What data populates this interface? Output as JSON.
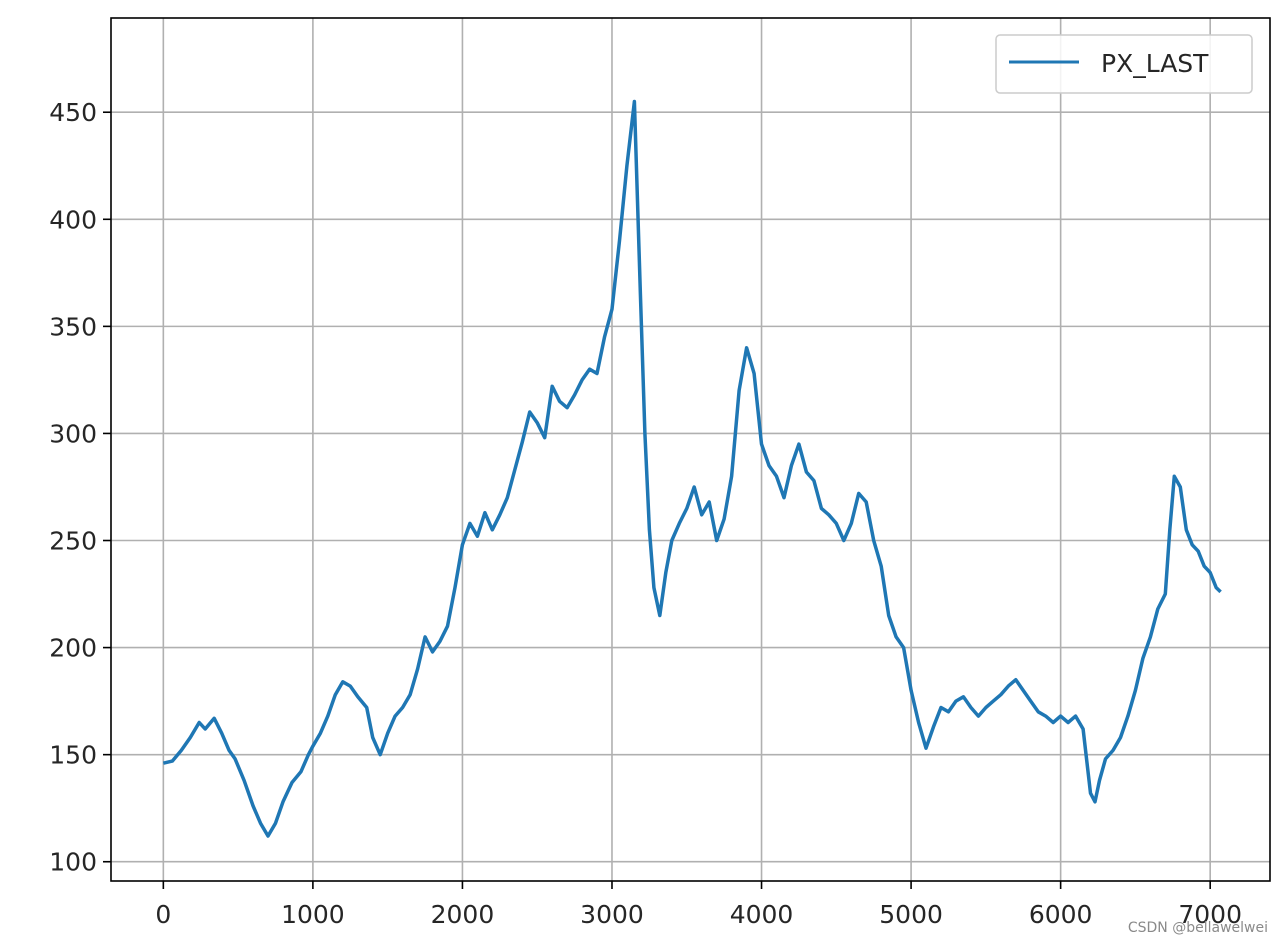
{
  "chart_data": {
    "type": "line",
    "title": "",
    "xlabel": "",
    "ylabel": "",
    "xlim": [
      -350,
      7400
    ],
    "ylim": [
      91,
      494
    ],
    "grid": true,
    "legend_position": "top-right",
    "x_ticks": [
      0,
      1000,
      2000,
      3000,
      4000,
      5000,
      6000,
      7000
    ],
    "y_ticks": [
      100,
      150,
      200,
      250,
      300,
      350,
      400,
      450
    ],
    "series": [
      {
        "name": "PX_LAST",
        "color": "#1f77b4",
        "points": [
          [
            0,
            146
          ],
          [
            60,
            147
          ],
          [
            120,
            152
          ],
          [
            180,
            158
          ],
          [
            240,
            165
          ],
          [
            280,
            162
          ],
          [
            340,
            167
          ],
          [
            390,
            160
          ],
          [
            440,
            152
          ],
          [
            480,
            148
          ],
          [
            540,
            138
          ],
          [
            600,
            126
          ],
          [
            650,
            118
          ],
          [
            700,
            112
          ],
          [
            750,
            118
          ],
          [
            800,
            128
          ],
          [
            860,
            137
          ],
          [
            920,
            142
          ],
          [
            970,
            150
          ],
          [
            1000,
            154
          ],
          [
            1050,
            160
          ],
          [
            1100,
            168
          ],
          [
            1150,
            178
          ],
          [
            1200,
            184
          ],
          [
            1250,
            182
          ],
          [
            1300,
            177
          ],
          [
            1360,
            172
          ],
          [
            1400,
            158
          ],
          [
            1450,
            150
          ],
          [
            1500,
            160
          ],
          [
            1550,
            168
          ],
          [
            1600,
            172
          ],
          [
            1650,
            178
          ],
          [
            1700,
            190
          ],
          [
            1750,
            205
          ],
          [
            1800,
            198
          ],
          [
            1850,
            203
          ],
          [
            1900,
            210
          ],
          [
            1950,
            228
          ],
          [
            2000,
            248
          ],
          [
            2050,
            258
          ],
          [
            2100,
            252
          ],
          [
            2150,
            263
          ],
          [
            2200,
            255
          ],
          [
            2250,
            262
          ],
          [
            2300,
            270
          ],
          [
            2350,
            283
          ],
          [
            2400,
            296
          ],
          [
            2450,
            310
          ],
          [
            2500,
            305
          ],
          [
            2550,
            298
          ],
          [
            2600,
            322
          ],
          [
            2650,
            315
          ],
          [
            2700,
            312
          ],
          [
            2750,
            318
          ],
          [
            2800,
            325
          ],
          [
            2850,
            330
          ],
          [
            2900,
            328
          ],
          [
            2950,
            345
          ],
          [
            3000,
            358
          ],
          [
            3050,
            390
          ],
          [
            3100,
            425
          ],
          [
            3150,
            455
          ],
          [
            3190,
            365
          ],
          [
            3220,
            300
          ],
          [
            3250,
            255
          ],
          [
            3280,
            228
          ],
          [
            3320,
            215
          ],
          [
            3360,
            235
          ],
          [
            3400,
            250
          ],
          [
            3450,
            258
          ],
          [
            3500,
            265
          ],
          [
            3550,
            275
          ],
          [
            3600,
            262
          ],
          [
            3650,
            268
          ],
          [
            3700,
            250
          ],
          [
            3750,
            260
          ],
          [
            3800,
            280
          ],
          [
            3850,
            320
          ],
          [
            3900,
            340
          ],
          [
            3950,
            328
          ],
          [
            4000,
            295
          ],
          [
            4050,
            285
          ],
          [
            4100,
            280
          ],
          [
            4150,
            270
          ],
          [
            4200,
            285
          ],
          [
            4250,
            295
          ],
          [
            4300,
            282
          ],
          [
            4350,
            278
          ],
          [
            4400,
            265
          ],
          [
            4450,
            262
          ],
          [
            4500,
            258
          ],
          [
            4550,
            250
          ],
          [
            4600,
            258
          ],
          [
            4650,
            272
          ],
          [
            4700,
            268
          ],
          [
            4750,
            250
          ],
          [
            4800,
            238
          ],
          [
            4850,
            215
          ],
          [
            4900,
            205
          ],
          [
            4950,
            200
          ],
          [
            5000,
            180
          ],
          [
            5050,
            165
          ],
          [
            5100,
            153
          ],
          [
            5150,
            163
          ],
          [
            5200,
            172
          ],
          [
            5250,
            170
          ],
          [
            5300,
            175
          ],
          [
            5350,
            177
          ],
          [
            5400,
            172
          ],
          [
            5450,
            168
          ],
          [
            5500,
            172
          ],
          [
            5550,
            175
          ],
          [
            5600,
            178
          ],
          [
            5650,
            182
          ],
          [
            5700,
            185
          ],
          [
            5750,
            180
          ],
          [
            5800,
            175
          ],
          [
            5850,
            170
          ],
          [
            5900,
            168
          ],
          [
            5950,
            165
          ],
          [
            6000,
            168
          ],
          [
            6050,
            165
          ],
          [
            6100,
            168
          ],
          [
            6150,
            162
          ],
          [
            6200,
            132
          ],
          [
            6230,
            128
          ],
          [
            6260,
            138
          ],
          [
            6300,
            148
          ],
          [
            6350,
            152
          ],
          [
            6400,
            158
          ],
          [
            6450,
            168
          ],
          [
            6500,
            180
          ],
          [
            6550,
            195
          ],
          [
            6600,
            205
          ],
          [
            6650,
            218
          ],
          [
            6700,
            225
          ],
          [
            6730,
            255
          ],
          [
            6760,
            280
          ],
          [
            6800,
            275
          ],
          [
            6840,
            255
          ],
          [
            6880,
            248
          ],
          [
            6920,
            245
          ],
          [
            6960,
            238
          ],
          [
            7000,
            235
          ],
          [
            7040,
            228
          ],
          [
            7070,
            226
          ]
        ]
      }
    ]
  },
  "watermark": "CSDN @bellawelwei"
}
